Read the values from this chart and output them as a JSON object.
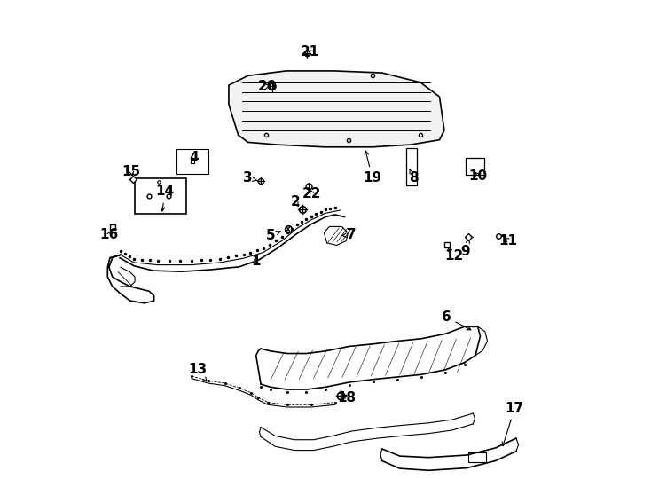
{
  "background_color": "#ffffff",
  "line_color": "#000000",
  "label_fontsize": 11,
  "label_positions": {
    "1": {
      "text": [
        0.355,
        0.455
      ],
      "arrow": [
        0.355,
        0.473
      ]
    },
    "2": {
      "text": [
        0.438,
        0.578
      ],
      "arrow": [
        0.447,
        0.563
      ]
    },
    "3": {
      "text": [
        0.338,
        0.628
      ],
      "arrow": [
        0.358,
        0.623
      ]
    },
    "4": {
      "text": [
        0.225,
        0.672
      ],
      "arrow": [
        0.218,
        0.658
      ]
    },
    "5": {
      "text": [
        0.385,
        0.508
      ],
      "arrow": [
        0.412,
        0.52
      ]
    },
    "6": {
      "text": [
        0.752,
        0.338
      ],
      "arrow": [
        0.81,
        0.308
      ]
    },
    "7": {
      "text": [
        0.555,
        0.51
      ],
      "arrow": [
        0.533,
        0.508
      ]
    },
    "8": {
      "text": [
        0.685,
        0.628
      ],
      "arrow": [
        0.675,
        0.648
      ]
    },
    "9": {
      "text": [
        0.792,
        0.475
      ],
      "arrow": [
        0.8,
        0.503
      ]
    },
    "10": {
      "text": [
        0.818,
        0.632
      ],
      "arrow": [
        0.808,
        0.647
      ]
    },
    "11": {
      "text": [
        0.882,
        0.498
      ],
      "arrow": [
        0.868,
        0.507
      ]
    },
    "12": {
      "text": [
        0.768,
        0.465
      ],
      "arrow": [
        0.755,
        0.485
      ]
    },
    "13": {
      "text": [
        0.233,
        0.228
      ],
      "arrow": [
        0.256,
        0.198
      ]
    },
    "14": {
      "text": [
        0.165,
        0.6
      ],
      "arrow": [
        0.158,
        0.552
      ]
    },
    "15": {
      "text": [
        0.095,
        0.642
      ],
      "arrow": [
        0.098,
        0.626
      ]
    },
    "16": {
      "text": [
        0.048,
        0.51
      ],
      "arrow": [
        0.055,
        0.524
      ]
    },
    "17": {
      "text": [
        0.895,
        0.148
      ],
      "arrow": [
        0.868,
        0.062
      ]
    },
    "18": {
      "text": [
        0.545,
        0.17
      ],
      "arrow": [
        0.533,
        0.182
      ]
    },
    "19": {
      "text": [
        0.598,
        0.628
      ],
      "arrow": [
        0.582,
        0.692
      ]
    },
    "20": {
      "text": [
        0.378,
        0.82
      ],
      "arrow": [
        0.387,
        0.82
      ]
    },
    "21": {
      "text": [
        0.468,
        0.892
      ],
      "arrow": [
        0.462,
        0.895
      ]
    },
    "22": {
      "text": [
        0.472,
        0.595
      ],
      "arrow": [
        0.465,
        0.61
      ]
    }
  }
}
